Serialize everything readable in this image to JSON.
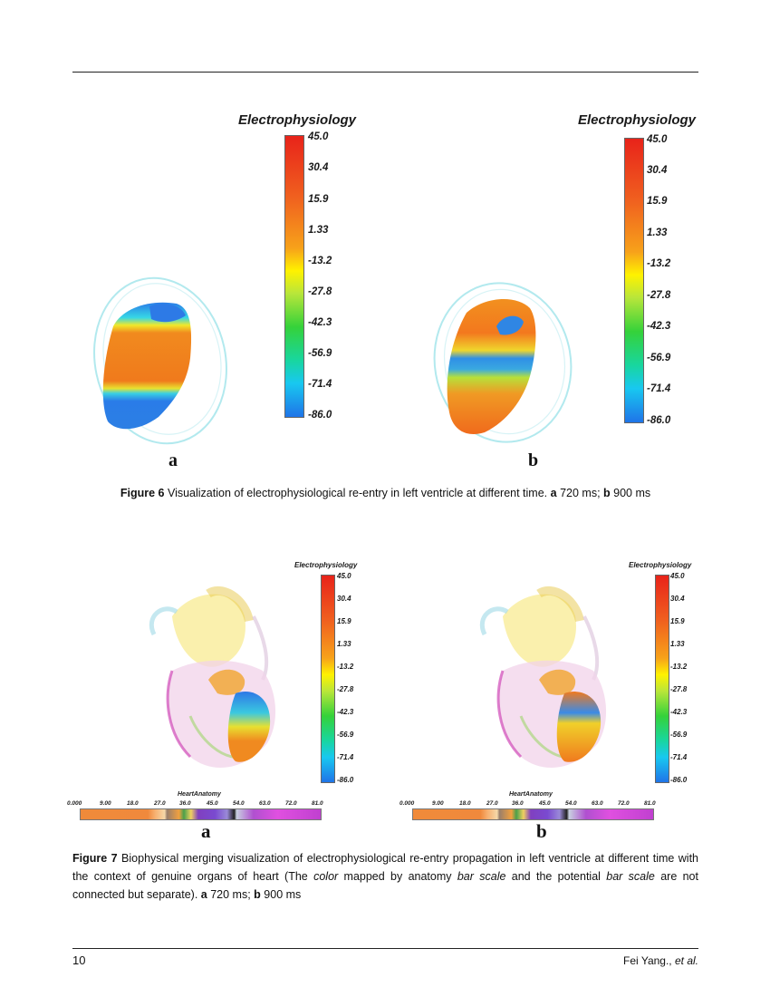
{
  "colorbar": {
    "title": "Electrophysiology",
    "ticks": [
      "45.0",
      "30.4",
      "15.9",
      "1.33",
      "-13.2",
      "-27.8",
      "-42.3",
      "-56.9",
      "-71.4",
      "-86.0"
    ]
  },
  "anatomy_bar": {
    "title": "HeartAnatomy",
    "ticks": [
      "0.000",
      "9.00",
      "18.0",
      "27.0",
      "36.0",
      "45.0",
      "54.0",
      "63.0",
      "72.0",
      "81.0"
    ]
  },
  "figure6": {
    "panels": [
      "a",
      "b"
    ],
    "caption": {
      "label": "Figure 6",
      "text": "Visualization of electrophysiological re-entry in left ventricle at different time.",
      "a_label": "a",
      "a_time": "720 ms;",
      "b_label": "b",
      "b_time": "900 ms"
    }
  },
  "figure7": {
    "panels": [
      "a",
      "b"
    ],
    "caption": {
      "label": "Figure 7",
      "text1": "Biophysical merging visualization of electrophysiological re-entry propagation in left ventricle at different time with the context of genuine organs of heart (The",
      "em1": "color",
      "text2": "mapped by anatomy",
      "em2": "bar scale",
      "text3": "and the potential",
      "em3": "bar scale",
      "text4": "are not connected but separate).",
      "a_label": "a",
      "a_time": "720 ms;",
      "b_label": "b",
      "b_time": "900 ms"
    }
  },
  "footer": {
    "page_number": "10",
    "author": "Fei Yang.,",
    "et_al": "et al."
  }
}
